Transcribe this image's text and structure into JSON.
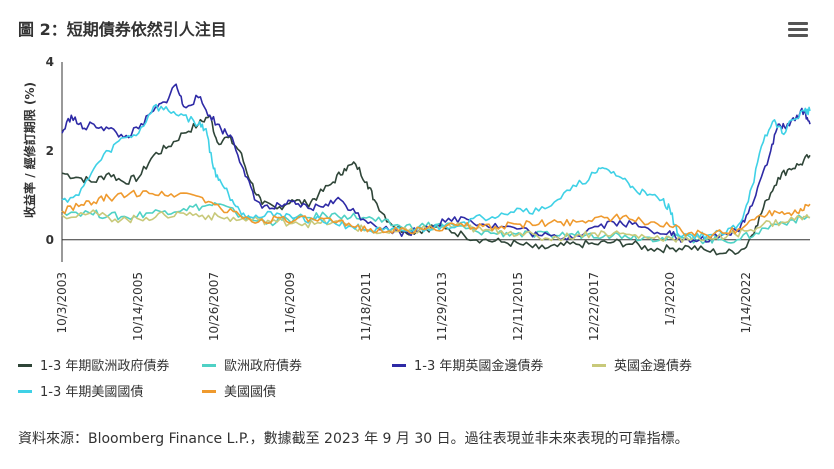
{
  "header": {
    "title": "圖 2：短期債券依然引人注目"
  },
  "menu": {
    "icon": "hamburger-menu-icon"
  },
  "footer": {
    "source": "資料來源：Bloomberg Finance L.P.，數據截至 2023 年 9 月 30 日。過往表現並非未來表現的可靠指標。"
  },
  "chart_data": {
    "type": "line",
    "title": "圖 2：短期債券依然引人注目",
    "ylabel": "收益率 / 經修訂期限 (%)",
    "xlabel": "",
    "ylim": [
      -0.5,
      4
    ],
    "yticks": [
      0,
      2,
      4
    ],
    "xlim": [
      2003.75,
      2023.75
    ],
    "x_ticks": [
      {
        "label": "10/3/2003",
        "x": 2003.75
      },
      {
        "label": "10/14/2005",
        "x": 2005.78
      },
      {
        "label": "10/26/2007",
        "x": 2007.82
      },
      {
        "label": "11/6/2009",
        "x": 2009.85
      },
      {
        "label": "11/18/2011",
        "x": 2011.88
      },
      {
        "label": "11/29/2013",
        "x": 2013.91
      },
      {
        "label": "12/11/2015",
        "x": 2015.94
      },
      {
        "label": "12/22/2017",
        "x": 2017.97
      },
      {
        "label": "1/3/2020",
        "x": 2020.01
      },
      {
        "label": "1/14/2022",
        "x": 2022.04
      }
    ],
    "grid": false,
    "legend_position": "bottom",
    "series": [
      {
        "name": "1-3 年期歐洲政府債券",
        "color": "#2f4538",
        "points": [
          [
            2003.75,
            1.5
          ],
          [
            2004.2,
            1.4
          ],
          [
            2004.6,
            1.3
          ],
          [
            2005.0,
            1.5
          ],
          [
            2005.4,
            1.3
          ],
          [
            2005.8,
            1.4
          ],
          [
            2006.2,
            1.9
          ],
          [
            2006.6,
            2.1
          ],
          [
            2007.0,
            2.4
          ],
          [
            2007.4,
            2.6
          ],
          [
            2007.7,
            2.8
          ],
          [
            2007.9,
            2.2
          ],
          [
            2008.2,
            2.3
          ],
          [
            2008.5,
            2.0
          ],
          [
            2008.8,
            1.3
          ],
          [
            2009.1,
            0.8
          ],
          [
            2009.5,
            0.7
          ],
          [
            2009.9,
            0.9
          ],
          [
            2010.3,
            0.8
          ],
          [
            2010.6,
            1.0
          ],
          [
            2011.0,
            1.3
          ],
          [
            2011.3,
            1.6
          ],
          [
            2011.6,
            1.7
          ],
          [
            2011.9,
            1.3
          ],
          [
            2012.1,
            0.9
          ],
          [
            2012.5,
            0.4
          ],
          [
            2012.9,
            0.2
          ],
          [
            2013.3,
            0.2
          ],
          [
            2013.7,
            0.3
          ],
          [
            2014.0,
            0.25
          ],
          [
            2014.5,
            0.1
          ],
          [
            2015.0,
            0.0
          ],
          [
            2015.5,
            -0.05
          ],
          [
            2016.0,
            -0.1
          ],
          [
            2016.5,
            -0.2
          ],
          [
            2017.0,
            -0.15
          ],
          [
            2017.5,
            -0.1
          ],
          [
            2018.0,
            -0.1
          ],
          [
            2018.5,
            -0.05
          ],
          [
            2019.0,
            -0.1
          ],
          [
            2019.5,
            -0.2
          ],
          [
            2020.0,
            -0.2
          ],
          [
            2020.5,
            -0.15
          ],
          [
            2021.0,
            -0.25
          ],
          [
            2021.5,
            -0.3
          ],
          [
            2022.0,
            -0.2
          ],
          [
            2022.3,
            0.3
          ],
          [
            2022.6,
            0.9
          ],
          [
            2022.9,
            1.4
          ],
          [
            2023.2,
            1.6
          ],
          [
            2023.5,
            1.7
          ],
          [
            2023.75,
            1.9
          ]
        ]
      },
      {
        "name": "歐洲政府債券",
        "color": "#4fd1c5",
        "points": [
          [
            2003.75,
            0.65
          ],
          [
            2004.5,
            0.6
          ],
          [
            2005.0,
            0.55
          ],
          [
            2005.5,
            0.5
          ],
          [
            2006.0,
            0.6
          ],
          [
            2006.5,
            0.65
          ],
          [
            2007.0,
            0.7
          ],
          [
            2007.5,
            0.75
          ],
          [
            2007.9,
            0.8
          ],
          [
            2008.4,
            0.6
          ],
          [
            2008.8,
            0.45
          ],
          [
            2009.3,
            0.4
          ],
          [
            2009.8,
            0.45
          ],
          [
            2010.3,
            0.5
          ],
          [
            2010.8,
            0.55
          ],
          [
            2011.3,
            0.55
          ],
          [
            2011.8,
            0.5
          ],
          [
            2012.3,
            0.4
          ],
          [
            2012.8,
            0.3
          ],
          [
            2013.3,
            0.3
          ],
          [
            2013.8,
            0.35
          ],
          [
            2014.3,
            0.3
          ],
          [
            2014.8,
            0.2
          ],
          [
            2015.3,
            0.15
          ],
          [
            2015.8,
            0.15
          ],
          [
            2016.3,
            0.1
          ],
          [
            2016.8,
            0.1
          ],
          [
            2017.3,
            0.12
          ],
          [
            2017.8,
            0.12
          ],
          [
            2018.3,
            0.12
          ],
          [
            2018.8,
            0.1
          ],
          [
            2019.3,
            0.05
          ],
          [
            2019.8,
            0.05
          ],
          [
            2020.3,
            0.05
          ],
          [
            2020.8,
            0.0
          ],
          [
            2021.3,
            0.0
          ],
          [
            2021.8,
            0.0
          ],
          [
            2022.3,
            0.15
          ],
          [
            2022.8,
            0.35
          ],
          [
            2023.3,
            0.45
          ],
          [
            2023.75,
            0.5
          ]
        ]
      },
      {
        "name": "1-3 年期英國金邊債券",
        "color": "#2e2aa6",
        "points": [
          [
            2003.75,
            2.4
          ],
          [
            2004.0,
            2.8
          ],
          [
            2004.3,
            2.5
          ],
          [
            2004.6,
            2.6
          ],
          [
            2005.0,
            2.5
          ],
          [
            2005.4,
            2.3
          ],
          [
            2005.8,
            2.5
          ],
          [
            2006.2,
            2.9
          ],
          [
            2006.5,
            3.1
          ],
          [
            2006.8,
            3.5
          ],
          [
            2007.0,
            3.0
          ],
          [
            2007.4,
            3.2
          ],
          [
            2007.7,
            2.8
          ],
          [
            2008.0,
            2.5
          ],
          [
            2008.3,
            2.3
          ],
          [
            2008.6,
            1.6
          ],
          [
            2008.9,
            0.9
          ],
          [
            2009.3,
            0.7
          ],
          [
            2009.7,
            0.8
          ],
          [
            2010.0,
            0.8
          ],
          [
            2010.4,
            0.7
          ],
          [
            2010.8,
            0.8
          ],
          [
            2011.2,
            0.9
          ],
          [
            2011.6,
            0.6
          ],
          [
            2012.0,
            0.4
          ],
          [
            2012.5,
            0.2
          ],
          [
            2013.0,
            0.15
          ],
          [
            2013.5,
            0.3
          ],
          [
            2014.0,
            0.4
          ],
          [
            2014.5,
            0.5
          ],
          [
            2015.0,
            0.35
          ],
          [
            2015.5,
            0.3
          ],
          [
            2016.0,
            0.25
          ],
          [
            2016.5,
            0.1
          ],
          [
            2017.0,
            0.05
          ],
          [
            2017.5,
            0.1
          ],
          [
            2018.0,
            0.3
          ],
          [
            2018.5,
            0.4
          ],
          [
            2019.0,
            0.35
          ],
          [
            2019.5,
            0.2
          ],
          [
            2020.0,
            0.2
          ],
          [
            2020.3,
            -0.05
          ],
          [
            2020.8,
            0.0
          ],
          [
            2021.3,
            0.05
          ],
          [
            2021.8,
            0.2
          ],
          [
            2022.1,
            0.6
          ],
          [
            2022.4,
            1.3
          ],
          [
            2022.7,
            2.0
          ],
          [
            2022.9,
            2.6
          ],
          [
            2023.1,
            2.5
          ],
          [
            2023.4,
            2.8
          ],
          [
            2023.6,
            2.9
          ],
          [
            2023.75,
            2.6
          ]
        ]
      },
      {
        "name": "英國金邊債券",
        "color": "#c8c97a",
        "points": [
          [
            2003.75,
            0.55
          ],
          [
            2004.5,
            0.6
          ],
          [
            2005.0,
            0.5
          ],
          [
            2005.5,
            0.45
          ],
          [
            2006.0,
            0.5
          ],
          [
            2006.5,
            0.55
          ],
          [
            2007.0,
            0.6
          ],
          [
            2007.5,
            0.55
          ],
          [
            2008.0,
            0.5
          ],
          [
            2008.5,
            0.45
          ],
          [
            2009.0,
            0.45
          ],
          [
            2009.5,
            0.4
          ],
          [
            2010.0,
            0.4
          ],
          [
            2010.5,
            0.35
          ],
          [
            2011.0,
            0.4
          ],
          [
            2011.5,
            0.3
          ],
          [
            2012.0,
            0.2
          ],
          [
            2012.5,
            0.15
          ],
          [
            2013.0,
            0.2
          ],
          [
            2013.5,
            0.25
          ],
          [
            2014.0,
            0.3
          ],
          [
            2014.5,
            0.3
          ],
          [
            2015.0,
            0.2
          ],
          [
            2015.5,
            0.2
          ],
          [
            2016.0,
            0.15
          ],
          [
            2016.5,
            0.05
          ],
          [
            2017.0,
            0.05
          ],
          [
            2017.5,
            0.1
          ],
          [
            2018.0,
            0.15
          ],
          [
            2018.5,
            0.15
          ],
          [
            2019.0,
            0.1
          ],
          [
            2019.5,
            0.05
          ],
          [
            2020.0,
            0.05
          ],
          [
            2020.5,
            0.0
          ],
          [
            2021.0,
            0.05
          ],
          [
            2021.5,
            0.05
          ],
          [
            2022.0,
            0.2
          ],
          [
            2022.5,
            0.35
          ],
          [
            2023.0,
            0.4
          ],
          [
            2023.5,
            0.5
          ],
          [
            2023.75,
            0.5
          ]
        ]
      },
      {
        "name": "1-3 年期美國國債",
        "color": "#3fd1e6",
        "points": [
          [
            2003.75,
            0.9
          ],
          [
            2004.2,
            1.0
          ],
          [
            2004.6,
            1.6
          ],
          [
            2005.0,
            2.0
          ],
          [
            2005.4,
            2.3
          ],
          [
            2005.8,
            2.4
          ],
          [
            2006.2,
            3.0
          ],
          [
            2006.6,
            2.9
          ],
          [
            2007.0,
            2.8
          ],
          [
            2007.4,
            2.6
          ],
          [
            2007.6,
            2.5
          ],
          [
            2007.8,
            1.6
          ],
          [
            2008.0,
            1.3
          ],
          [
            2008.3,
            0.9
          ],
          [
            2008.6,
            0.6
          ],
          [
            2009.0,
            0.5
          ],
          [
            2009.5,
            0.6
          ],
          [
            2010.0,
            0.5
          ],
          [
            2010.5,
            0.45
          ],
          [
            2011.0,
            0.4
          ],
          [
            2011.5,
            0.3
          ],
          [
            2012.0,
            0.2
          ],
          [
            2012.5,
            0.2
          ],
          [
            2013.0,
            0.2
          ],
          [
            2013.5,
            0.25
          ],
          [
            2014.0,
            0.3
          ],
          [
            2014.5,
            0.4
          ],
          [
            2015.0,
            0.5
          ],
          [
            2015.5,
            0.6
          ],
          [
            2016.0,
            0.7
          ],
          [
            2016.5,
            0.65
          ],
          [
            2017.0,
            0.9
          ],
          [
            2017.5,
            1.2
          ],
          [
            2018.0,
            1.5
          ],
          [
            2018.3,
            1.6
          ],
          [
            2018.7,
            1.4
          ],
          [
            2019.0,
            1.2
          ],
          [
            2019.4,
            1.0
          ],
          [
            2019.8,
            0.9
          ],
          [
            2020.0,
            0.7
          ],
          [
            2020.2,
            0.15
          ],
          [
            2020.6,
            0.1
          ],
          [
            2021.0,
            0.1
          ],
          [
            2021.5,
            0.15
          ],
          [
            2021.9,
            0.4
          ],
          [
            2022.2,
            1.2
          ],
          [
            2022.5,
            2.2
          ],
          [
            2022.8,
            2.7
          ],
          [
            2023.0,
            2.4
          ],
          [
            2023.3,
            2.7
          ],
          [
            2023.6,
            2.9
          ],
          [
            2023.75,
            2.9
          ]
        ]
      },
      {
        "name": "美國國債",
        "color": "#ef9a2e",
        "points": [
          [
            2003.75,
            0.65
          ],
          [
            2004.2,
            0.75
          ],
          [
            2004.6,
            0.85
          ],
          [
            2005.0,
            0.95
          ],
          [
            2005.5,
            1.0
          ],
          [
            2006.0,
            1.1
          ],
          [
            2006.5,
            1.0
          ],
          [
            2007.0,
            1.05
          ],
          [
            2007.5,
            0.95
          ],
          [
            2008.0,
            0.7
          ],
          [
            2008.5,
            0.55
          ],
          [
            2009.0,
            0.4
          ],
          [
            2009.5,
            0.5
          ],
          [
            2010.0,
            0.45
          ],
          [
            2010.5,
            0.45
          ],
          [
            2011.0,
            0.4
          ],
          [
            2011.5,
            0.3
          ],
          [
            2012.0,
            0.25
          ],
          [
            2012.5,
            0.2
          ],
          [
            2013.0,
            0.2
          ],
          [
            2013.5,
            0.25
          ],
          [
            2014.0,
            0.3
          ],
          [
            2014.5,
            0.3
          ],
          [
            2015.0,
            0.3
          ],
          [
            2015.5,
            0.3
          ],
          [
            2016.0,
            0.35
          ],
          [
            2016.5,
            0.35
          ],
          [
            2017.0,
            0.4
          ],
          [
            2017.5,
            0.4
          ],
          [
            2018.0,
            0.5
          ],
          [
            2018.5,
            0.5
          ],
          [
            2019.0,
            0.45
          ],
          [
            2019.5,
            0.4
          ],
          [
            2020.0,
            0.3
          ],
          [
            2020.5,
            0.15
          ],
          [
            2021.0,
            0.1
          ],
          [
            2021.5,
            0.15
          ],
          [
            2022.0,
            0.3
          ],
          [
            2022.4,
            0.55
          ],
          [
            2022.8,
            0.65
          ],
          [
            2023.2,
            0.6
          ],
          [
            2023.5,
            0.7
          ],
          [
            2023.75,
            0.8
          ]
        ]
      }
    ]
  }
}
